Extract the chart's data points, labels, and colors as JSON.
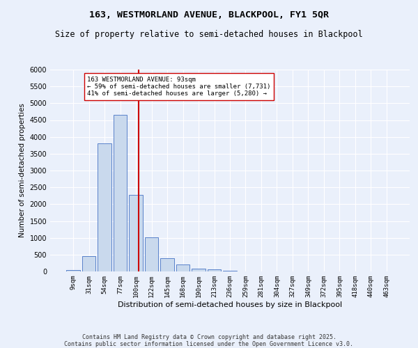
{
  "title": "163, WESTMORLAND AVENUE, BLACKPOOL, FY1 5QR",
  "subtitle": "Size of property relative to semi-detached houses in Blackpool",
  "xlabel": "Distribution of semi-detached houses by size in Blackpool",
  "ylabel": "Number of semi-detached properties",
  "bar_labels": [
    "9sqm",
    "31sqm",
    "54sqm",
    "77sqm",
    "100sqm",
    "122sqm",
    "145sqm",
    "168sqm",
    "190sqm",
    "213sqm",
    "236sqm",
    "259sqm",
    "281sqm",
    "304sqm",
    "327sqm",
    "349sqm",
    "372sqm",
    "395sqm",
    "418sqm",
    "440sqm",
    "463sqm"
  ],
  "bar_values": [
    50,
    450,
    3800,
    4650,
    2280,
    1010,
    400,
    200,
    90,
    70,
    30,
    10,
    5,
    3,
    2,
    1,
    1,
    1,
    1,
    1,
    1
  ],
  "bar_color": "#c9d9ed",
  "bar_edge_color": "#4472c4",
  "background_color": "#eaf0fb",
  "grid_color": "#ffffff",
  "property_label": "163 WESTMORLAND AVENUE: 93sqm",
  "pct_smaller": 59,
  "count_smaller": 7731,
  "pct_larger": 41,
  "count_larger": 5280,
  "vline_color": "#cc0000",
  "annotation_box_color": "#ffffff",
  "annotation_box_edge": "#cc0000",
  "ylim": [
    0,
    6000
  ],
  "yticks": [
    0,
    500,
    1000,
    1500,
    2000,
    2500,
    3000,
    3500,
    4000,
    4500,
    5000,
    5500,
    6000
  ],
  "footer_line1": "Contains HM Land Registry data © Crown copyright and database right 2025.",
  "footer_line2": "Contains public sector information licensed under the Open Government Licence v3.0."
}
